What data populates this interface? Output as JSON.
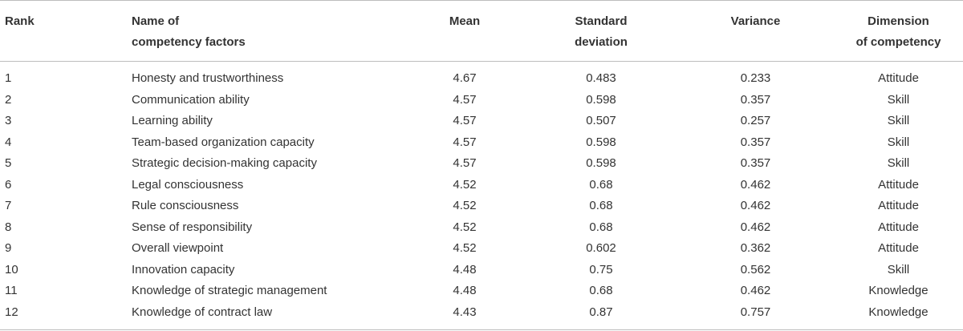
{
  "table": {
    "headers": {
      "rank": [
        "Rank"
      ],
      "name": [
        "Name of",
        "competency factors"
      ],
      "mean": [
        "Mean"
      ],
      "sd": [
        "Standard",
        "deviation"
      ],
      "variance": [
        "Variance"
      ],
      "dimension": [
        "Dimension",
        "of competency"
      ]
    },
    "rows": [
      {
        "rank": "1",
        "name": "Honesty and trustworthiness",
        "mean": "4.67",
        "sd": "0.483",
        "variance": "0.233",
        "dimension": "Attitude"
      },
      {
        "rank": "2",
        "name": "Communication ability",
        "mean": "4.57",
        "sd": "0.598",
        "variance": "0.357",
        "dimension": "Skill"
      },
      {
        "rank": "3",
        "name": "Learning ability",
        "mean": "4.57",
        "sd": "0.507",
        "variance": "0.257",
        "dimension": "Skill"
      },
      {
        "rank": "4",
        "name": "Team-based organization capacity",
        "mean": "4.57",
        "sd": "0.598",
        "variance": "0.357",
        "dimension": "Skill"
      },
      {
        "rank": "5",
        "name": "Strategic decision-making capacity",
        "mean": "4.57",
        "sd": "0.598",
        "variance": "0.357",
        "dimension": "Skill"
      },
      {
        "rank": "6",
        "name": "Legal consciousness",
        "mean": "4.52",
        "sd": "0.68",
        "variance": "0.462",
        "dimension": "Attitude"
      },
      {
        "rank": "7",
        "name": "Rule consciousness",
        "mean": "4.52",
        "sd": "0.68",
        "variance": "0.462",
        "dimension": "Attitude"
      },
      {
        "rank": "8",
        "name": "Sense of responsibility",
        "mean": "4.52",
        "sd": "0.68",
        "variance": "0.462",
        "dimension": "Attitude"
      },
      {
        "rank": "9",
        "name": "Overall viewpoint",
        "mean": "4.52",
        "sd": "0.602",
        "variance": "0.362",
        "dimension": "Attitude"
      },
      {
        "rank": "10",
        "name": "Innovation capacity",
        "mean": "4.48",
        "sd": "0.75",
        "variance": "0.562",
        "dimension": "Skill"
      },
      {
        "rank": "11",
        "name": "Knowledge of strategic management",
        "mean": "4.48",
        "sd": "0.68",
        "variance": "0.462",
        "dimension": "Knowledge"
      },
      {
        "rank": "12",
        "name": "Knowledge of contract law",
        "mean": "4.43",
        "sd": "0.87",
        "variance": "0.757",
        "dimension": "Knowledge"
      }
    ]
  }
}
